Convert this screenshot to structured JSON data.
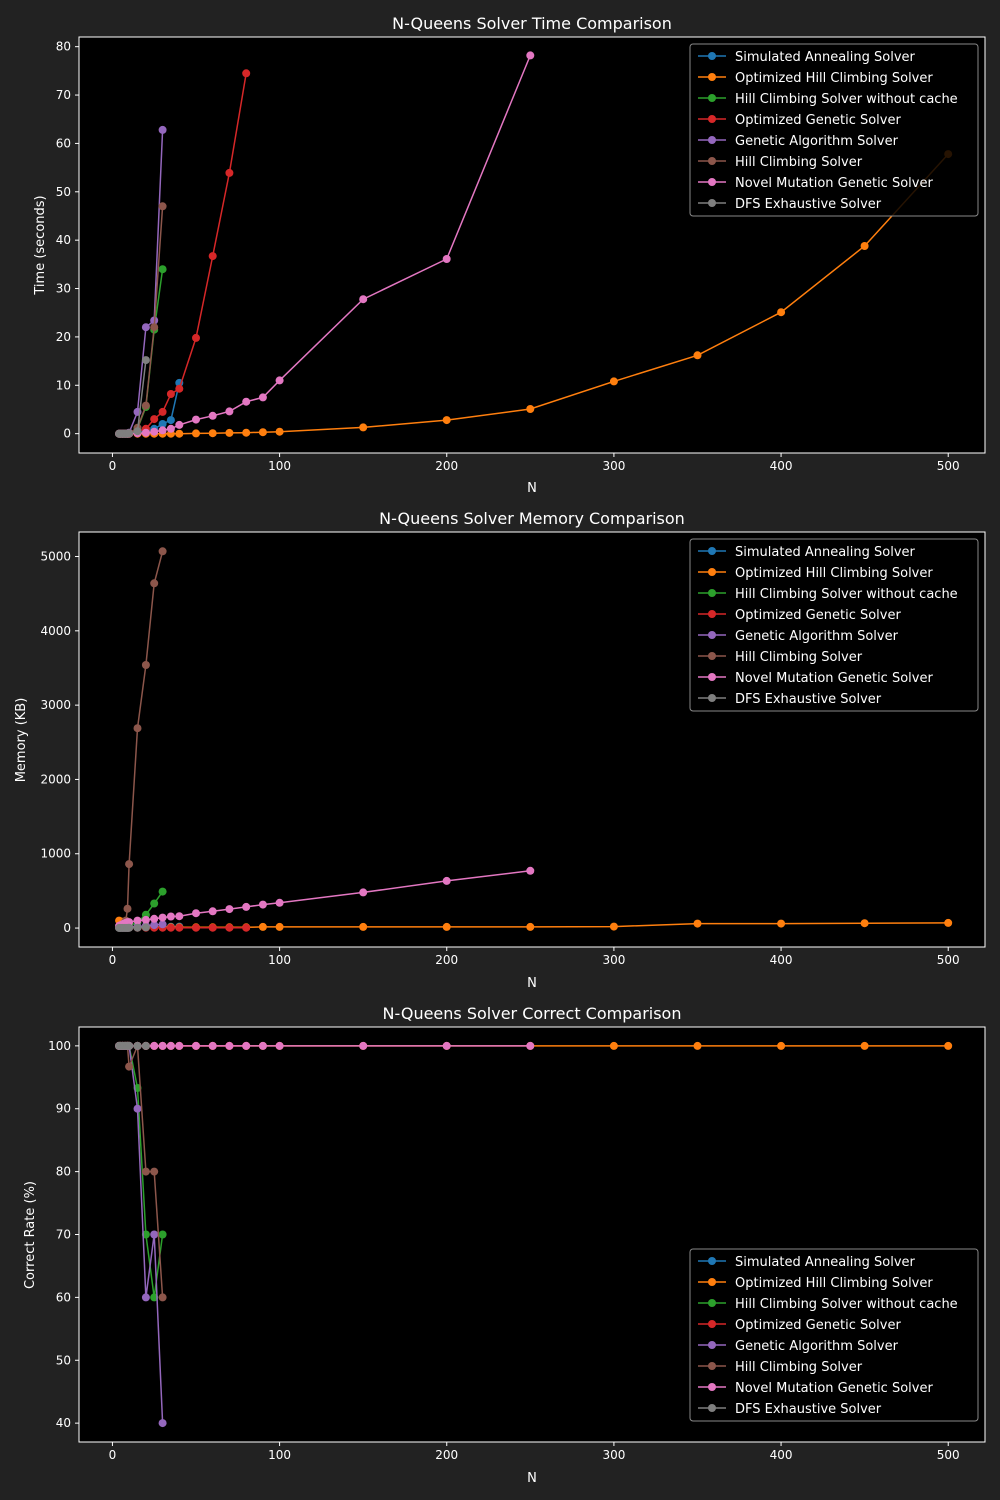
{
  "figure": {
    "background": "#222222",
    "axes_background": "#000000"
  },
  "chart_data": [
    {
      "type": "line",
      "title": "N-Queens Solver Time Comparison",
      "xlabel": "N",
      "ylabel": "Time (seconds)",
      "xlim": [
        -20,
        522
      ],
      "ylim": [
        -4,
        82
      ],
      "xticks": [
        0,
        100,
        200,
        300,
        400,
        500
      ],
      "yticks": [
        0,
        10,
        20,
        30,
        40,
        50,
        60,
        70,
        80
      ],
      "legend_position": "top-right",
      "series": [
        {
          "name": "Simulated Annealing Solver",
          "color": "#1f77b4",
          "x": [
            4,
            5,
            6,
            7,
            8,
            9,
            10,
            15,
            20,
            25,
            30,
            35,
            40
          ],
          "y": [
            0,
            0,
            0,
            0,
            0,
            0,
            0.1,
            0.2,
            0.5,
            1,
            2,
            2.8,
            10.5
          ]
        },
        {
          "name": "Optimized Hill Climbing Solver",
          "color": "#ff7f0e",
          "x": [
            4,
            5,
            6,
            7,
            8,
            9,
            10,
            15,
            20,
            25,
            30,
            35,
            40,
            50,
            60,
            70,
            80,
            90,
            100,
            150,
            200,
            250,
            300,
            350,
            400,
            450,
            500
          ],
          "y": [
            0,
            0,
            0,
            0,
            0,
            0,
            0,
            0,
            0,
            0,
            0,
            0,
            0,
            0.05,
            0.1,
            0.15,
            0.2,
            0.3,
            0.4,
            1.3,
            2.8,
            5.1,
            10.8,
            16.2,
            25.1,
            38.8,
            57.8
          ]
        },
        {
          "name": "Hill Climbing Solver without cache",
          "color": "#2ca02c",
          "x": [
            4,
            5,
            6,
            7,
            8,
            9,
            10,
            15,
            20,
            25,
            30
          ],
          "y": [
            0,
            0,
            0,
            0,
            0,
            0,
            0.1,
            1,
            5.5,
            21.5,
            34
          ]
        },
        {
          "name": "Optimized Genetic Solver",
          "color": "#d62728",
          "x": [
            4,
            5,
            6,
            7,
            8,
            9,
            10,
            15,
            20,
            25,
            30,
            35,
            40,
            50,
            60,
            70,
            80
          ],
          "y": [
            0,
            0,
            0,
            0,
            0,
            0,
            0.1,
            0.5,
            1,
            3,
            4.5,
            8.2,
            9.3,
            19.8,
            36.7,
            53.9,
            74.5
          ]
        },
        {
          "name": "Genetic Algorithm Solver",
          "color": "#9467bd",
          "x": [
            4,
            5,
            6,
            7,
            8,
            9,
            10,
            15,
            20,
            25,
            30
          ],
          "y": [
            0,
            0,
            0,
            0,
            0,
            0,
            0.2,
            4.5,
            22,
            23.4,
            62.8
          ]
        },
        {
          "name": "Hill Climbing Solver",
          "color": "#8c564b",
          "x": [
            4,
            5,
            6,
            7,
            8,
            9,
            10,
            15,
            20,
            25,
            30
          ],
          "y": [
            0,
            0,
            0,
            0,
            0,
            0,
            0.1,
            1.2,
            5.8,
            22,
            47
          ]
        },
        {
          "name": "Novel Mutation Genetic Solver",
          "color": "#e377c2",
          "x": [
            4,
            5,
            6,
            7,
            8,
            9,
            10,
            15,
            20,
            25,
            30,
            35,
            40,
            50,
            60,
            70,
            80,
            90,
            100,
            150,
            200,
            250
          ],
          "y": [
            0,
            0,
            0,
            0,
            0,
            0,
            0,
            0.1,
            0.2,
            0.4,
            0.7,
            1,
            1.8,
            2.9,
            3.7,
            4.6,
            6.6,
            7.5,
            11,
            27.8,
            36.1,
            78.2
          ]
        },
        {
          "name": "DFS Exhaustive Solver",
          "color": "#7f7f7f",
          "x": [
            4,
            5,
            6,
            7,
            8,
            9,
            10,
            15,
            20
          ],
          "y": [
            0,
            0,
            0,
            0,
            0,
            0,
            0.05,
            0.5,
            15.2
          ]
        }
      ]
    },
    {
      "type": "line",
      "title": "N-Queens Solver Memory Comparison",
      "xlabel": "N",
      "ylabel": "Memory (KB)",
      "xlim": [
        -20,
        522
      ],
      "ylim": [
        -255,
        5330
      ],
      "xticks": [
        0,
        100,
        200,
        300,
        400,
        500
      ],
      "yticks": [
        0,
        1000,
        2000,
        3000,
        4000,
        5000
      ],
      "legend_position": "top-right",
      "series": [
        {
          "name": "Simulated Annealing Solver",
          "color": "#1f77b4",
          "x": [
            4,
            5,
            6,
            7,
            8,
            9,
            10,
            15,
            20,
            25,
            30,
            35,
            40
          ],
          "y": [
            5,
            5,
            5,
            5,
            5,
            5,
            5,
            8,
            10,
            12,
            15,
            18,
            20
          ]
        },
        {
          "name": "Optimized Hill Climbing Solver",
          "color": "#ff7f0e",
          "x": [
            4,
            5,
            6,
            7,
            8,
            9,
            10,
            15,
            20,
            25,
            30,
            35,
            40,
            50,
            60,
            70,
            80,
            90,
            100,
            150,
            200,
            250,
            300,
            350,
            400,
            450,
            500
          ],
          "y": [
            100,
            90,
            70,
            50,
            40,
            30,
            20,
            10,
            10,
            10,
            10,
            10,
            10,
            10,
            10,
            10,
            10,
            15,
            15,
            15,
            15,
            15,
            20,
            60,
            60,
            65,
            70
          ]
        },
        {
          "name": "Hill Climbing Solver without cache",
          "color": "#2ca02c",
          "x": [
            4,
            5,
            6,
            7,
            8,
            9,
            10,
            15,
            20,
            25,
            30
          ],
          "y": [
            5,
            5,
            10,
            10,
            15,
            20,
            25,
            80,
            180,
            330,
            490
          ]
        },
        {
          "name": "Optimized Genetic Solver",
          "color": "#d62728",
          "x": [
            4,
            5,
            6,
            7,
            8,
            9,
            10,
            15,
            20,
            25,
            30,
            35,
            40,
            50,
            60,
            70,
            80
          ],
          "y": [
            5,
            5,
            5,
            5,
            5,
            5,
            5,
            5,
            5,
            5,
            5,
            5,
            5,
            5,
            5,
            5,
            5
          ]
        },
        {
          "name": "Genetic Algorithm Solver",
          "color": "#9467bd",
          "x": [
            4,
            5,
            6,
            7,
            8,
            9,
            10,
            15,
            20,
            25,
            30
          ],
          "y": [
            5,
            5,
            5,
            5,
            5,
            5,
            10,
            20,
            30,
            40,
            50
          ]
        },
        {
          "name": "Hill Climbing Solver",
          "color": "#8c564b",
          "x": [
            4,
            5,
            6,
            7,
            8,
            9,
            10,
            15,
            20,
            25,
            30
          ],
          "y": [
            10,
            20,
            40,
            70,
            100,
            260,
            860,
            2690,
            3540,
            4640,
            5070
          ]
        },
        {
          "name": "Novel Mutation Genetic Solver",
          "color": "#e377c2",
          "x": [
            4,
            5,
            6,
            7,
            8,
            9,
            10,
            15,
            20,
            25,
            30,
            35,
            40,
            50,
            60,
            70,
            80,
            90,
            100,
            150,
            200,
            250
          ],
          "y": [
            30,
            40,
            50,
            60,
            70,
            80,
            80,
            100,
            110,
            125,
            140,
            155,
            160,
            200,
            225,
            255,
            285,
            315,
            340,
            480,
            635,
            770
          ]
        },
        {
          "name": "DFS Exhaustive Solver",
          "color": "#7f7f7f",
          "x": [
            4,
            5,
            6,
            7,
            8,
            9,
            10,
            15,
            20
          ],
          "y": [
            2,
            2,
            2,
            2,
            2,
            2,
            3,
            5,
            10
          ]
        }
      ]
    },
    {
      "type": "line",
      "title": "N-Queens Solver Correct Comparison",
      "xlabel": "N",
      "ylabel": "Correct Rate (%)",
      "xlim": [
        -20,
        522
      ],
      "ylim": [
        37,
        103
      ],
      "xticks": [
        0,
        100,
        200,
        300,
        400,
        500
      ],
      "yticks": [
        40,
        50,
        60,
        70,
        80,
        90,
        100
      ],
      "legend_position": "lower-right",
      "series": [
        {
          "name": "Simulated Annealing Solver",
          "color": "#1f77b4",
          "x": [
            4,
            5,
            6,
            7,
            8,
            9,
            10,
            15,
            20,
            25,
            30,
            35,
            40
          ],
          "y": [
            100,
            100,
            100,
            100,
            100,
            100,
            100,
            100,
            100,
            100,
            100,
            100,
            100
          ]
        },
        {
          "name": "Optimized Hill Climbing Solver",
          "color": "#ff7f0e",
          "x": [
            4,
            5,
            6,
            7,
            8,
            9,
            10,
            15,
            20,
            25,
            30,
            35,
            40,
            50,
            60,
            70,
            80,
            90,
            100,
            150,
            200,
            250,
            300,
            350,
            400,
            450,
            500
          ],
          "y": [
            100,
            100,
            100,
            100,
            100,
            100,
            100,
            100,
            100,
            100,
            100,
            100,
            100,
            100,
            100,
            100,
            100,
            100,
            100,
            100,
            100,
            100,
            100,
            100,
            100,
            100,
            100
          ]
        },
        {
          "name": "Hill Climbing Solver without cache",
          "color": "#2ca02c",
          "x": [
            4,
            5,
            6,
            7,
            8,
            9,
            10,
            15,
            20,
            25,
            30
          ],
          "y": [
            100,
            100,
            100,
            100,
            100,
            100,
            100,
            93.3,
            70,
            60,
            70
          ]
        },
        {
          "name": "Optimized Genetic Solver",
          "color": "#d62728",
          "x": [
            4,
            5,
            6,
            7,
            8,
            9,
            10,
            15,
            20,
            25,
            30,
            35,
            40,
            50,
            60,
            70,
            80
          ],
          "y": [
            100,
            100,
            100,
            100,
            100,
            100,
            100,
            100,
            100,
            100,
            100,
            100,
            100,
            100,
            100,
            100,
            100
          ]
        },
        {
          "name": "Genetic Algorithm Solver",
          "color": "#9467bd",
          "x": [
            4,
            5,
            6,
            7,
            8,
            9,
            10,
            15,
            20,
            25,
            30
          ],
          "y": [
            100,
            100,
            100,
            100,
            100,
            100,
            100,
            90,
            60,
            70,
            40
          ]
        },
        {
          "name": "Hill Climbing Solver",
          "color": "#8c564b",
          "x": [
            4,
            5,
            6,
            7,
            8,
            9,
            10,
            15,
            20,
            25,
            30
          ],
          "y": [
            100,
            100,
            100,
            100,
            100,
            100,
            96.7,
            100,
            80,
            80,
            60
          ]
        },
        {
          "name": "Novel Mutation Genetic Solver",
          "color": "#e377c2",
          "x": [
            4,
            5,
            6,
            7,
            8,
            9,
            10,
            15,
            20,
            25,
            30,
            35,
            40,
            50,
            60,
            70,
            80,
            90,
            100,
            150,
            200,
            250
          ],
          "y": [
            100,
            100,
            100,
            100,
            100,
            100,
            100,
            100,
            100,
            100,
            100,
            100,
            100,
            100,
            100,
            100,
            100,
            100,
            100,
            100,
            100,
            100
          ]
        },
        {
          "name": "DFS Exhaustive Solver",
          "color": "#7f7f7f",
          "x": [
            4,
            5,
            6,
            7,
            8,
            9,
            10,
            15,
            20
          ],
          "y": [
            100,
            100,
            100,
            100,
            100,
            100,
            100,
            100,
            100
          ]
        }
      ]
    }
  ]
}
